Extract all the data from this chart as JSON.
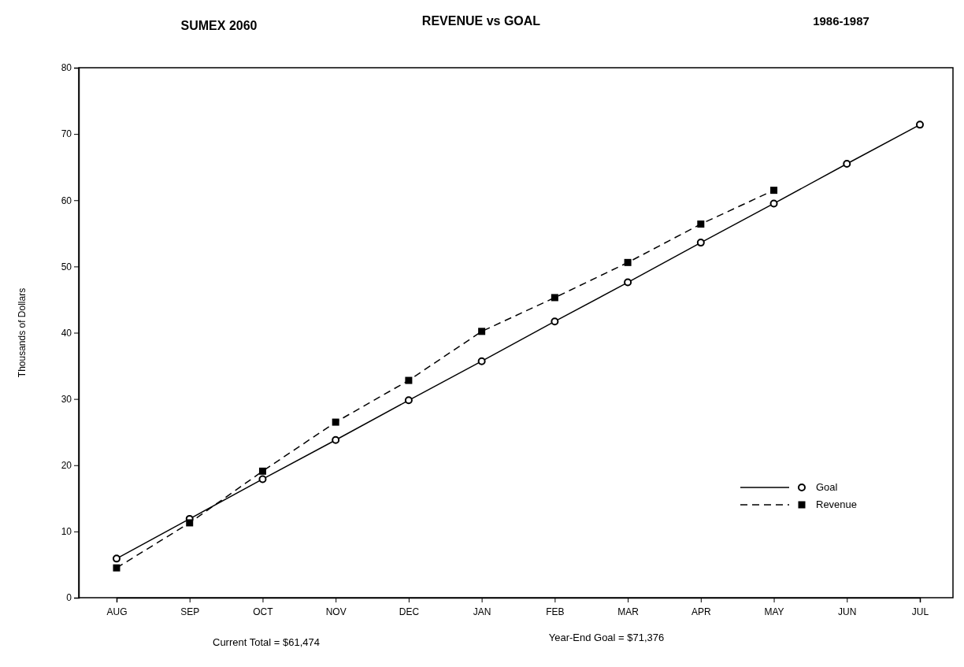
{
  "chart_data": {
    "type": "line",
    "title": "REVENUE vs GOAL",
    "subtitle": "SUMEX 2060",
    "annotations": [
      "1986-1987",
      "Current Total = $61,474",
      "Year-End Goal = $71,376"
    ],
    "ylabel": "Thousands of Dollars",
    "categories": [
      "AUG",
      "SEP",
      "OCT",
      "NOV",
      "DEC",
      "JAN",
      "FEB",
      "MAR",
      "APR",
      "MAY",
      "JUN",
      "JUL"
    ],
    "ylim": [
      0,
      80
    ],
    "yticks": [
      0,
      10,
      20,
      30,
      40,
      50,
      60,
      70,
      80
    ],
    "grid": false,
    "legend": "bottom right",
    "series": [
      {
        "name": "Goal",
        "color": "#000000",
        "marker": "circle",
        "line_style": "solid",
        "values": [
          5.9,
          11.9,
          17.9,
          23.8,
          29.8,
          35.7,
          41.7,
          47.6,
          53.6,
          59.5,
          65.5,
          71.4
        ]
      },
      {
        "name": "Revenue",
        "color": "#000000",
        "marker": "square",
        "line_style": "dashed",
        "values": [
          4.5,
          11.3,
          19.1,
          26.5,
          32.8,
          40.2,
          45.3,
          50.6,
          56.4,
          61.5,
          null,
          null
        ]
      }
    ]
  }
}
